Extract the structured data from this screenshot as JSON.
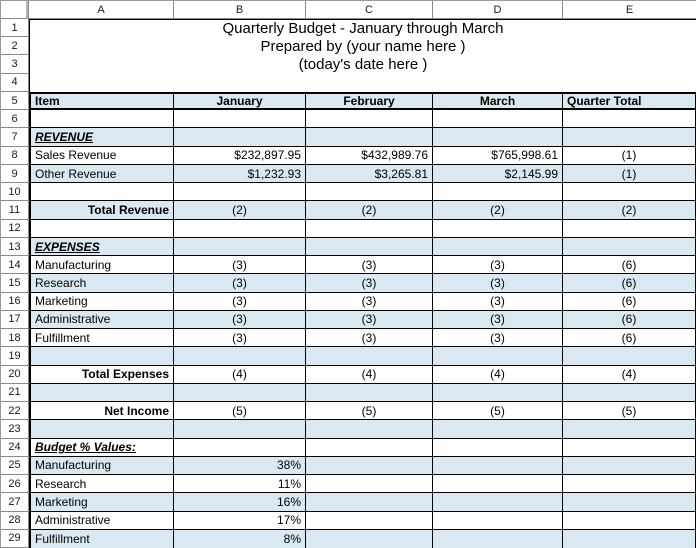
{
  "colors": {
    "band_blue": "#d9e8f1",
    "grid_line": "#000000",
    "header_border": "#8a8a8a"
  },
  "column_headers": [
    "A",
    "B",
    "C",
    "D",
    "E"
  ],
  "row_numbers": [
    "1",
    "2",
    "3",
    "4",
    "5",
    "6",
    "7",
    "8",
    "9",
    "10",
    "11",
    "12",
    "13",
    "14",
    "15",
    "16",
    "17",
    "18",
    "19",
    "20",
    "21",
    "22",
    "23",
    "24",
    "25",
    "26",
    "27",
    "28",
    "29"
  ],
  "sheet_title_block": {
    "lines": [
      "Quarterly Budget - January through March",
      "Prepared by (your name here )",
      "(today's date here )",
      ""
    ]
  },
  "body_rows": [
    {
      "n": 5,
      "fill": "blue",
      "thick": true,
      "cells": [
        {
          "text": "Item",
          "align": "l",
          "bold": true
        },
        {
          "text": "January",
          "align": "c",
          "bold": true
        },
        {
          "text": "February",
          "align": "c",
          "bold": true
        },
        {
          "text": "March",
          "align": "c",
          "bold": true
        },
        {
          "text": "Quarter Total",
          "align": "l",
          "bold": true
        }
      ]
    },
    {
      "n": 6,
      "fill": "white",
      "cells": [
        {
          "text": ""
        },
        {
          "text": ""
        },
        {
          "text": ""
        },
        {
          "text": ""
        },
        {
          "text": ""
        }
      ]
    },
    {
      "n": 7,
      "fill": "blue",
      "cells": [
        {
          "text": "REVENUE",
          "align": "l",
          "emph": true
        },
        {
          "text": ""
        },
        {
          "text": ""
        },
        {
          "text": ""
        },
        {
          "text": ""
        }
      ]
    },
    {
      "n": 8,
      "fill": "white",
      "cells": [
        {
          "text": "Sales Revenue",
          "align": "l"
        },
        {
          "text": "$232,897.95",
          "align": "r"
        },
        {
          "text": "$432,989.76",
          "align": "r"
        },
        {
          "text": "$765,998.61",
          "align": "r"
        },
        {
          "text": "(1)",
          "align": "c"
        }
      ]
    },
    {
      "n": 9,
      "fill": "blue",
      "cells": [
        {
          "text": "Other Revenue",
          "align": "l"
        },
        {
          "text": "$1,232.93",
          "align": "r"
        },
        {
          "text": "$3,265.81",
          "align": "r"
        },
        {
          "text": "$2,145.99",
          "align": "r"
        },
        {
          "text": "(1)",
          "align": "c"
        }
      ]
    },
    {
      "n": 10,
      "fill": "white",
      "cells": [
        {
          "text": ""
        },
        {
          "text": ""
        },
        {
          "text": ""
        },
        {
          "text": ""
        },
        {
          "text": ""
        }
      ]
    },
    {
      "n": 11,
      "fill": "blue",
      "cells": [
        {
          "text": "Total Revenue",
          "align": "r",
          "bold": true
        },
        {
          "text": "(2)",
          "align": "c"
        },
        {
          "text": "(2)",
          "align": "c"
        },
        {
          "text": "(2)",
          "align": "c"
        },
        {
          "text": "(2)",
          "align": "c"
        }
      ]
    },
    {
      "n": 12,
      "fill": "white",
      "cells": [
        {
          "text": ""
        },
        {
          "text": ""
        },
        {
          "text": ""
        },
        {
          "text": ""
        },
        {
          "text": ""
        }
      ]
    },
    {
      "n": 13,
      "fill": "blue",
      "cells": [
        {
          "text": "EXPENSES",
          "align": "l",
          "emph": true
        },
        {
          "text": ""
        },
        {
          "text": ""
        },
        {
          "text": ""
        },
        {
          "text": ""
        }
      ]
    },
    {
      "n": 14,
      "fill": "white",
      "cells": [
        {
          "text": "Manufacturing",
          "align": "l"
        },
        {
          "text": "(3)",
          "align": "c"
        },
        {
          "text": "(3)",
          "align": "c"
        },
        {
          "text": "(3)",
          "align": "c"
        },
        {
          "text": "(6)",
          "align": "c"
        }
      ]
    },
    {
      "n": 15,
      "fill": "blue",
      "cells": [
        {
          "text": "Research",
          "align": "l"
        },
        {
          "text": "(3)",
          "align": "c"
        },
        {
          "text": "(3)",
          "align": "c"
        },
        {
          "text": "(3)",
          "align": "c"
        },
        {
          "text": "(6)",
          "align": "c"
        }
      ]
    },
    {
      "n": 16,
      "fill": "white",
      "cells": [
        {
          "text": "Marketing",
          "align": "l"
        },
        {
          "text": "(3)",
          "align": "c"
        },
        {
          "text": "(3)",
          "align": "c"
        },
        {
          "text": "(3)",
          "align": "c"
        },
        {
          "text": "(6)",
          "align": "c"
        }
      ]
    },
    {
      "n": 17,
      "fill": "blue",
      "cells": [
        {
          "text": "Administrative",
          "align": "l"
        },
        {
          "text": "(3)",
          "align": "c"
        },
        {
          "text": "(3)",
          "align": "c"
        },
        {
          "text": "(3)",
          "align": "c"
        },
        {
          "text": "(6)",
          "align": "c"
        }
      ]
    },
    {
      "n": 18,
      "fill": "white",
      "cells": [
        {
          "text": "Fulfillment",
          "align": "l"
        },
        {
          "text": "(3)",
          "align": "c"
        },
        {
          "text": "(3)",
          "align": "c"
        },
        {
          "text": "(3)",
          "align": "c"
        },
        {
          "text": "(6)",
          "align": "c"
        }
      ]
    },
    {
      "n": 19,
      "fill": "blue",
      "cells": [
        {
          "text": ""
        },
        {
          "text": ""
        },
        {
          "text": ""
        },
        {
          "text": ""
        },
        {
          "text": ""
        }
      ]
    },
    {
      "n": 20,
      "fill": "white",
      "cells": [
        {
          "text": "Total Expenses",
          "align": "r",
          "bold": true
        },
        {
          "text": "(4)",
          "align": "c"
        },
        {
          "text": "(4)",
          "align": "c"
        },
        {
          "text": "(4)",
          "align": "c"
        },
        {
          "text": "(4)",
          "align": "c"
        }
      ]
    },
    {
      "n": 21,
      "fill": "blue",
      "cells": [
        {
          "text": ""
        },
        {
          "text": ""
        },
        {
          "text": ""
        },
        {
          "text": ""
        },
        {
          "text": ""
        }
      ]
    },
    {
      "n": 22,
      "fill": "white",
      "cells": [
        {
          "text": "Net Income",
          "align": "r",
          "bold": true
        },
        {
          "text": "(5)",
          "align": "c"
        },
        {
          "text": "(5)",
          "align": "c"
        },
        {
          "text": "(5)",
          "align": "c"
        },
        {
          "text": "(5)",
          "align": "c"
        }
      ]
    },
    {
      "n": 23,
      "fill": "blue",
      "cells": [
        {
          "text": ""
        },
        {
          "text": ""
        },
        {
          "text": ""
        },
        {
          "text": ""
        },
        {
          "text": ""
        }
      ]
    },
    {
      "n": 24,
      "fill": "white",
      "cells": [
        {
          "text": "Budget % Values:",
          "align": "l",
          "emph": true
        },
        {
          "text": ""
        },
        {
          "text": ""
        },
        {
          "text": ""
        },
        {
          "text": ""
        }
      ]
    },
    {
      "n": 25,
      "fill": "blue",
      "cells": [
        {
          "text": "Manufacturing",
          "align": "l"
        },
        {
          "text": "38%",
          "align": "r"
        },
        {
          "text": ""
        },
        {
          "text": ""
        },
        {
          "text": ""
        }
      ]
    },
    {
      "n": 26,
      "fill": "white",
      "cells": [
        {
          "text": "Research",
          "align": "l"
        },
        {
          "text": "11%",
          "align": "r"
        },
        {
          "text": ""
        },
        {
          "text": ""
        },
        {
          "text": ""
        }
      ]
    },
    {
      "n": 27,
      "fill": "blue",
      "cells": [
        {
          "text": "Marketing",
          "align": "l"
        },
        {
          "text": "16%",
          "align": "r"
        },
        {
          "text": ""
        },
        {
          "text": ""
        },
        {
          "text": ""
        }
      ]
    },
    {
      "n": 28,
      "fill": "white",
      "cells": [
        {
          "text": "Administrative",
          "align": "l"
        },
        {
          "text": "17%",
          "align": "r"
        },
        {
          "text": ""
        },
        {
          "text": ""
        },
        {
          "text": ""
        }
      ]
    },
    {
      "n": 29,
      "fill": "blue",
      "cells": [
        {
          "text": "Fulfillment",
          "align": "l"
        },
        {
          "text": "8%",
          "align": "r"
        },
        {
          "text": ""
        },
        {
          "text": ""
        },
        {
          "text": ""
        }
      ]
    }
  ]
}
